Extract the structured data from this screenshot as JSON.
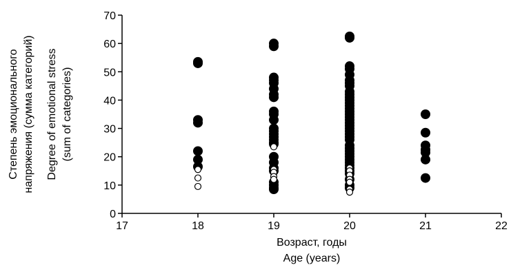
{
  "chart_data": {
    "type": "scatter",
    "title": "",
    "xlabel_lines": [
      "Возраст, годы",
      "Age (years)"
    ],
    "ylabel_lines": [
      "Степень эмоционального",
      "напряжения (сумма категорий)",
      "Degree of emotional stress",
      "(sum of categories)"
    ],
    "xlim": [
      17,
      22
    ],
    "ylim": [
      0,
      70
    ],
    "x_ticks": [
      "17",
      "18",
      "19",
      "20",
      "21",
      "22"
    ],
    "y_ticks": [
      "0",
      "10",
      "20",
      "30",
      "40",
      "50",
      "60",
      "70"
    ],
    "grid": false,
    "colors": {
      "filled": "#000000",
      "open_fill": "#ffffff",
      "open_stroke": "#000000"
    },
    "series": [
      {
        "marker": "filled-circle",
        "points": [
          [
            18,
            53.5
          ],
          [
            18,
            53
          ],
          [
            18,
            33
          ],
          [
            18,
            32
          ],
          [
            18,
            22
          ],
          [
            18,
            19
          ],
          [
            18,
            16.5
          ],
          [
            19,
            60
          ],
          [
            19,
            59
          ],
          [
            19,
            48
          ],
          [
            19,
            47
          ],
          [
            19,
            46
          ],
          [
            19,
            44
          ],
          [
            19,
            42
          ],
          [
            19,
            41
          ],
          [
            19,
            36
          ],
          [
            19,
            35
          ],
          [
            19,
            33
          ],
          [
            19,
            30
          ],
          [
            19,
            29
          ],
          [
            19,
            28
          ],
          [
            19,
            27
          ],
          [
            19,
            26
          ],
          [
            19,
            25
          ],
          [
            19,
            24.5
          ],
          [
            19,
            20
          ],
          [
            19,
            18
          ],
          [
            19,
            16
          ],
          [
            19,
            15
          ],
          [
            19,
            11
          ],
          [
            19,
            10
          ],
          [
            19,
            9
          ],
          [
            19,
            8.5
          ],
          [
            20,
            62.5
          ],
          [
            20,
            62
          ],
          [
            20,
            52
          ],
          [
            20,
            51
          ],
          [
            20,
            49
          ],
          [
            20,
            47
          ],
          [
            20,
            46
          ],
          [
            20,
            45
          ],
          [
            20,
            43
          ],
          [
            20,
            42
          ],
          [
            20,
            41
          ],
          [
            20,
            40
          ],
          [
            20,
            39
          ],
          [
            20,
            38
          ],
          [
            20,
            37
          ],
          [
            20,
            36
          ],
          [
            20,
            35
          ],
          [
            20,
            34
          ],
          [
            20,
            33
          ],
          [
            20,
            32
          ],
          [
            20,
            31
          ],
          [
            20,
            30
          ],
          [
            20,
            29
          ],
          [
            20,
            28
          ],
          [
            20,
            27
          ],
          [
            20,
            26
          ],
          [
            20,
            24
          ],
          [
            20,
            23
          ],
          [
            20,
            22
          ],
          [
            20,
            21
          ],
          [
            20,
            20
          ],
          [
            20,
            19
          ],
          [
            20,
            18
          ],
          [
            20,
            17
          ],
          [
            20,
            16
          ],
          [
            20,
            15
          ],
          [
            20,
            14
          ],
          [
            20,
            12
          ],
          [
            20,
            10
          ],
          [
            20,
            9
          ],
          [
            21,
            35
          ],
          [
            21,
            28.5
          ],
          [
            21,
            24
          ],
          [
            21,
            22.5
          ],
          [
            21,
            21.5
          ],
          [
            21,
            19
          ],
          [
            21,
            12.5
          ]
        ]
      },
      {
        "marker": "open-circle",
        "points": [
          [
            18,
            15.5
          ],
          [
            18,
            12.5
          ],
          [
            18,
            9.5
          ],
          [
            19,
            23.5
          ],
          [
            19,
            15.5
          ],
          [
            19,
            14.5
          ],
          [
            19,
            13
          ],
          [
            19,
            12
          ],
          [
            20,
            16
          ],
          [
            20,
            15
          ],
          [
            20,
            13.5
          ],
          [
            20,
            12
          ],
          [
            20,
            11
          ],
          [
            20,
            8.5
          ],
          [
            20,
            7.5
          ]
        ]
      }
    ]
  }
}
